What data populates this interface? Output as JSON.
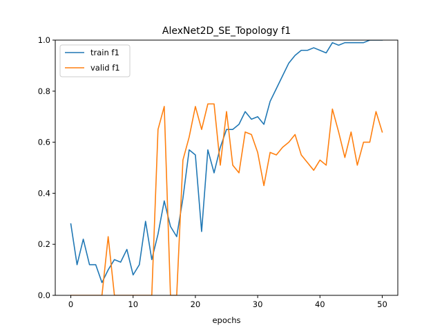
{
  "chart_data": {
    "type": "line",
    "title": "AlexNet2D_SE_Topology f1",
    "xlabel": "epochs",
    "ylabel": "",
    "xlim": [
      -2.5,
      52.5
    ],
    "ylim": [
      0.0,
      1.0
    ],
    "xticks": [
      0,
      10,
      20,
      30,
      40,
      50
    ],
    "yticks": [
      0.0,
      0.2,
      0.4,
      0.6,
      0.8,
      1.0
    ],
    "xtick_labels": [
      "0",
      "10",
      "20",
      "30",
      "40",
      "50"
    ],
    "ytick_labels": [
      "0.0",
      "0.2",
      "0.4",
      "0.6",
      "0.8",
      "1.0"
    ],
    "legend_position": "top-left",
    "x": [
      0,
      1,
      2,
      3,
      4,
      5,
      6,
      7,
      8,
      9,
      10,
      11,
      12,
      13,
      14,
      15,
      16,
      17,
      18,
      19,
      20,
      21,
      22,
      23,
      24,
      25,
      26,
      27,
      28,
      29,
      30,
      31,
      32,
      33,
      34,
      35,
      36,
      37,
      38,
      39,
      40,
      41,
      42,
      43,
      44,
      45,
      46,
      47,
      48,
      49,
      50
    ],
    "series": [
      {
        "name": "train f1",
        "color": "#1f77b4",
        "values": [
          0.28,
          0.12,
          0.22,
          0.12,
          0.12,
          0.05,
          0.1,
          0.14,
          0.13,
          0.18,
          0.08,
          0.12,
          0.29,
          0.14,
          0.24,
          0.37,
          0.27,
          0.23,
          0.38,
          0.57,
          0.55,
          0.25,
          0.57,
          0.48,
          0.58,
          0.65,
          0.65,
          0.67,
          0.72,
          0.69,
          0.7,
          0.67,
          0.76,
          0.81,
          0.86,
          0.91,
          0.94,
          0.96,
          0.96,
          0.97,
          0.96,
          0.95,
          0.99,
          0.98,
          0.99,
          0.99,
          0.99,
          0.99,
          1.0,
          1.0,
          1.0
        ]
      },
      {
        "name": "valid f1",
        "color": "#ff7f0e",
        "values": [
          0.0,
          0.0,
          0.0,
          0.0,
          0.0,
          0.0,
          0.23,
          0.0,
          0.0,
          0.0,
          0.0,
          0.0,
          0.0,
          0.0,
          0.65,
          0.74,
          0.0,
          0.0,
          0.53,
          0.62,
          0.74,
          0.65,
          0.75,
          0.75,
          0.51,
          0.72,
          0.51,
          0.48,
          0.64,
          0.63,
          0.56,
          0.43,
          0.56,
          0.55,
          0.58,
          0.6,
          0.63,
          0.55,
          0.52,
          0.49,
          0.53,
          0.51,
          0.73,
          0.64,
          0.54,
          0.64,
          0.51,
          0.6,
          0.6,
          0.72,
          0.64
        ]
      }
    ]
  }
}
